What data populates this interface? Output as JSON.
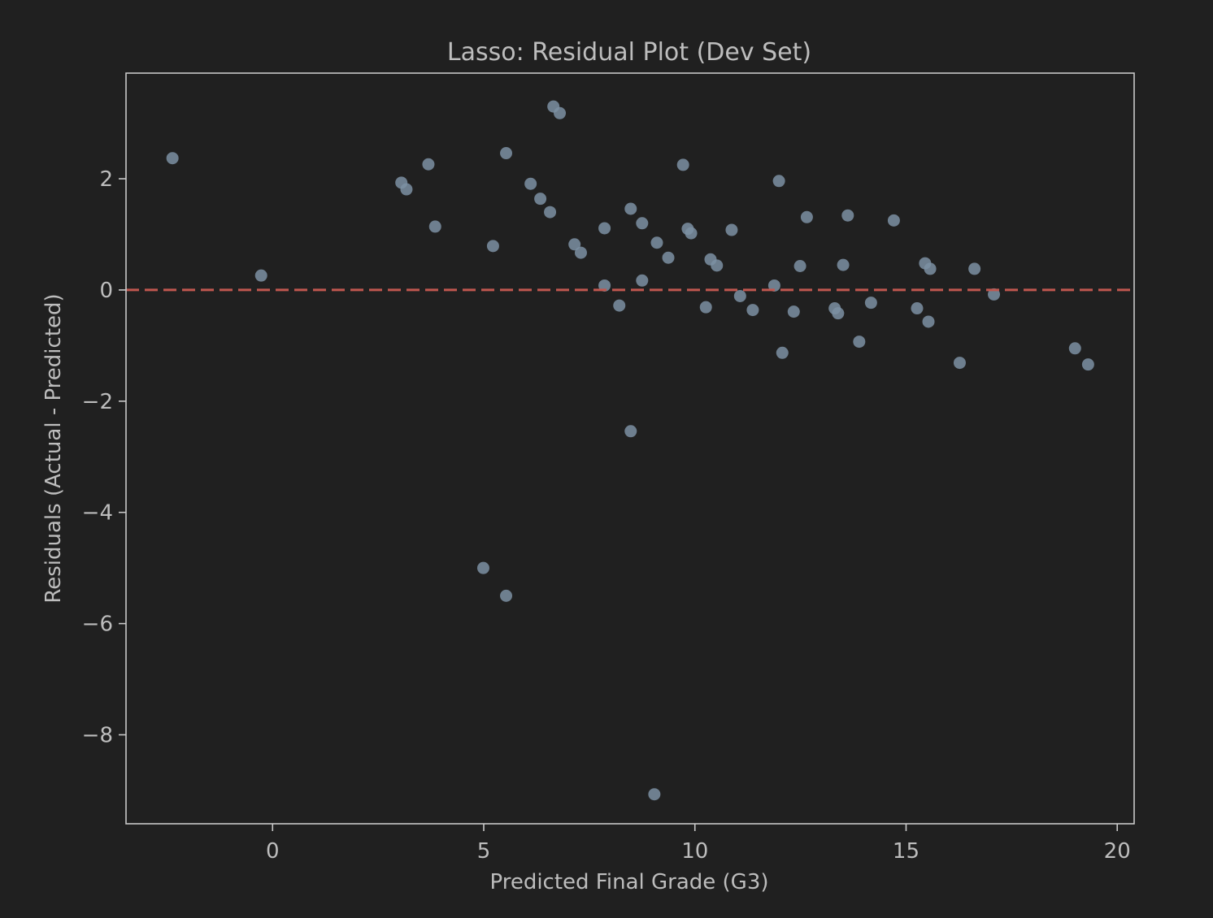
{
  "colors": {
    "background": "#202020",
    "axes": "#c8c8c8",
    "text": "#bdbdbd",
    "point": "#7d90a3",
    "zero_line": "#c0574f"
  },
  "chart_data": {
    "type": "scatter",
    "title": "Lasso: Residual Plot (Dev Set)",
    "xlabel": "Predicted Final Grade (G3)",
    "ylabel": "Residuals (Actual - Predicted)",
    "xlim": [
      -3.47,
      20.4
    ],
    "ylim": [
      -9.6,
      3.9
    ],
    "xticks": [
      0,
      5,
      10,
      15,
      20
    ],
    "xtick_labels": [
      "0",
      "5",
      "10",
      "15",
      "20"
    ],
    "yticks": [
      2,
      0,
      -2,
      -4,
      -6,
      -8
    ],
    "ytick_labels": [
      "2",
      "0",
      "−2",
      "−4",
      "−6",
      "−8"
    ],
    "grid": false,
    "reference_line": {
      "y": 0,
      "style": "dashed"
    },
    "points": [
      {
        "x": -2.37,
        "y": 2.37
      },
      {
        "x": -0.27,
        "y": 0.26
      },
      {
        "x": 3.05,
        "y": 1.93
      },
      {
        "x": 3.17,
        "y": 1.81
      },
      {
        "x": 3.69,
        "y": 2.26
      },
      {
        "x": 3.85,
        "y": 1.14
      },
      {
        "x": 4.99,
        "y": -5.0
      },
      {
        "x": 5.22,
        "y": 0.79
      },
      {
        "x": 5.53,
        "y": 2.46
      },
      {
        "x": 5.53,
        "y": -5.5
      },
      {
        "x": 6.11,
        "y": 1.91
      },
      {
        "x": 6.34,
        "y": 1.64
      },
      {
        "x": 6.57,
        "y": 1.4
      },
      {
        "x": 6.65,
        "y": 3.3
      },
      {
        "x": 6.8,
        "y": 3.18
      },
      {
        "x": 7.15,
        "y": 0.82
      },
      {
        "x": 7.3,
        "y": 0.67
      },
      {
        "x": 7.86,
        "y": 1.11
      },
      {
        "x": 7.86,
        "y": 0.08
      },
      {
        "x": 8.21,
        "y": -0.28
      },
      {
        "x": 8.48,
        "y": 1.46
      },
      {
        "x": 8.48,
        "y": -2.54
      },
      {
        "x": 8.75,
        "y": 1.2
      },
      {
        "x": 8.75,
        "y": 0.17
      },
      {
        "x": 9.1,
        "y": 0.85
      },
      {
        "x": 9.04,
        "y": -9.07
      },
      {
        "x": 9.37,
        "y": 0.58
      },
      {
        "x": 9.72,
        "y": 2.25
      },
      {
        "x": 9.83,
        "y": 1.1
      },
      {
        "x": 9.91,
        "y": 1.02
      },
      {
        "x": 10.26,
        "y": -0.31
      },
      {
        "x": 10.37,
        "y": 0.55
      },
      {
        "x": 10.52,
        "y": 0.44
      },
      {
        "x": 10.87,
        "y": 1.08
      },
      {
        "x": 11.07,
        "y": -0.11
      },
      {
        "x": 11.37,
        "y": -0.36
      },
      {
        "x": 11.88,
        "y": 0.08
      },
      {
        "x": 11.99,
        "y": 1.96
      },
      {
        "x": 12.07,
        "y": -1.13
      },
      {
        "x": 12.34,
        "y": -0.39
      },
      {
        "x": 12.49,
        "y": 0.43
      },
      {
        "x": 12.65,
        "y": 1.31
      },
      {
        "x": 13.31,
        "y": -0.33
      },
      {
        "x": 13.39,
        "y": -0.42
      },
      {
        "x": 13.51,
        "y": 0.45
      },
      {
        "x": 13.62,
        "y": 1.34
      },
      {
        "x": 13.89,
        "y": -0.93
      },
      {
        "x": 14.17,
        "y": -0.23
      },
      {
        "x": 14.71,
        "y": 1.25
      },
      {
        "x": 15.26,
        "y": -0.33
      },
      {
        "x": 15.45,
        "y": 0.48
      },
      {
        "x": 15.53,
        "y": -0.57
      },
      {
        "x": 15.57,
        "y": 0.38
      },
      {
        "x": 16.27,
        "y": -1.31
      },
      {
        "x": 16.62,
        "y": 0.38
      },
      {
        "x": 17.08,
        "y": -0.08
      },
      {
        "x": 19.0,
        "y": -1.05
      },
      {
        "x": 19.31,
        "y": -1.34
      }
    ]
  }
}
